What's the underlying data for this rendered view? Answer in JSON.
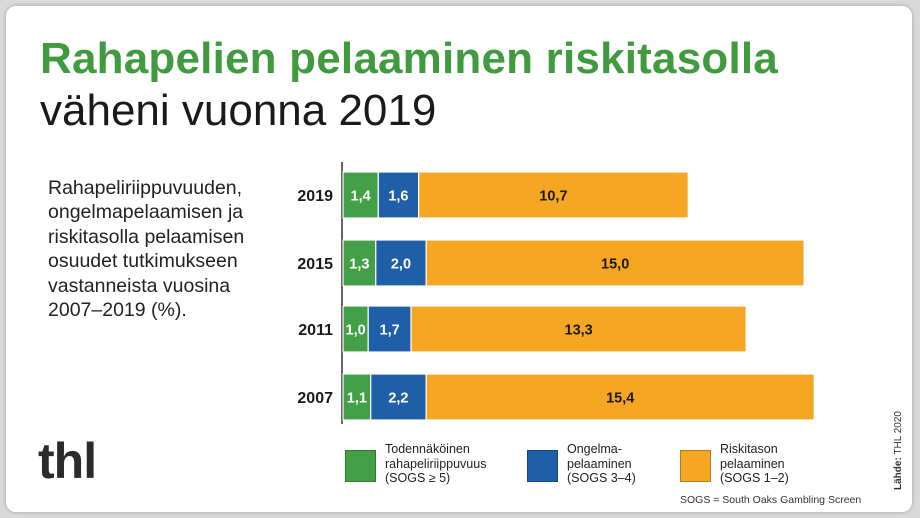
{
  "title_line1": "Rahapelien pelaaminen riskitasolla",
  "title_line2": "väheni vuonna 2019",
  "description": "Rahapeliriippuvuuden,\nongelmapelaamisen ja\nriskitasolla pelaamisen\nosuudet tutkimukseen\nvastanneista vuosina\n2007–2019 (%).",
  "logo": "thl",
  "footnote": "SOGS = South Oaks Gambling Screen",
  "source_label": "Lähde:",
  "source_value": "THL 2020",
  "chart_data": {
    "type": "bar",
    "orientation": "horizontal",
    "stacked": true,
    "categories": [
      "2019",
      "2015",
      "2011",
      "2007"
    ],
    "series": [
      {
        "name": "Todennäköinen\nrahapeliriippuvuus\n(SOGS ≥ 5)",
        "color": "#43a047",
        "values": [
          1.4,
          1.3,
          1.0,
          1.1
        ],
        "labels": [
          "1,4",
          "1,3",
          "1,0",
          "1,1"
        ]
      },
      {
        "name": "Ongelma-\npelaaminen\n(SOGS 3–4)",
        "color": "#1f5fa8",
        "values": [
          1.6,
          2.0,
          1.7,
          2.2
        ],
        "labels": [
          "1,6",
          "2,0",
          "1,7",
          "2,2"
        ]
      },
      {
        "name": "Riskitason\npelaaminen\n(SOGS 1–2)",
        "color": "#f5a623",
        "values": [
          10.7,
          15.0,
          13.3,
          15.4
        ],
        "labels": [
          "10,7",
          "15,0",
          "13,3",
          "15,4"
        ]
      }
    ],
    "grid": false,
    "legend": "bottom"
  }
}
